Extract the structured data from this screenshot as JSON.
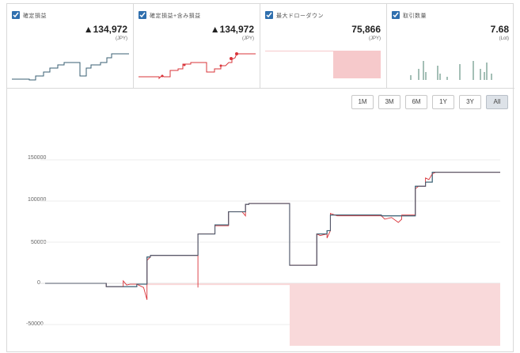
{
  "cards": [
    {
      "label": "確定損益",
      "value": "▲134,972",
      "unit": "(JPY)",
      "color": "#3a5f73"
    },
    {
      "label": "確定損益+含み損益",
      "value": "▲134,972",
      "unit": "(JPY)",
      "color": "#d9343a"
    },
    {
      "label": "最大ドローダウン",
      "value": "75,866",
      "unit": "(JPY)",
      "color": "#f6c9cb"
    },
    {
      "label": "取引数量",
      "value": "7.68",
      "unit": "(Lot)",
      "color": "#4a7f6c"
    }
  ],
  "range_buttons": [
    "1M",
    "3M",
    "6M",
    "1Y",
    "3Y",
    "All"
  ],
  "active_range": "All",
  "chart_data": {
    "type": "line",
    "y_ticks": [
      "150000",
      "100000",
      "50000",
      "0",
      "-50000"
    ],
    "ylim": [
      -75866,
      150000
    ],
    "grid": true,
    "series": [
      {
        "color": "#3a5f73",
        "points": [
          [
            0,
            0
          ],
          [
            0.18,
            0
          ],
          [
            0.18,
            -4000
          ],
          [
            0.27,
            -4000
          ],
          [
            0.27,
            -1000
          ],
          [
            0.3,
            -1000
          ],
          [
            0.3,
            32000
          ],
          [
            0.31,
            32000
          ],
          [
            0.31,
            34000
          ],
          [
            0.45,
            34000
          ],
          [
            0.45,
            60000
          ],
          [
            0.5,
            60000
          ],
          [
            0.5,
            71000
          ],
          [
            0.54,
            71000
          ],
          [
            0.54,
            87000
          ],
          [
            0.59,
            87000
          ],
          [
            0.59,
            96000
          ],
          [
            0.6,
            96000
          ],
          [
            0.6,
            97000
          ],
          [
            0.72,
            97000
          ],
          [
            0.72,
            22000
          ],
          [
            0.8,
            22000
          ],
          [
            0.8,
            60000
          ],
          [
            0.83,
            60000
          ],
          [
            0.83,
            64000
          ],
          [
            0.84,
            64000
          ],
          [
            0.84,
            83000
          ],
          [
            0.99,
            83000
          ],
          [
            0.99,
            82000
          ],
          [
            1.09,
            82000
          ],
          [
            1.09,
            118000
          ],
          [
            1.12,
            118000
          ],
          [
            1.12,
            123000
          ],
          [
            1.14,
            123000
          ],
          [
            1.14,
            134972
          ],
          [
            1.34,
            134972
          ]
        ]
      },
      {
        "color": "#d9343a",
        "points": [
          [
            0,
            0
          ],
          [
            0.18,
            0
          ],
          [
            0.18,
            -4000
          ],
          [
            0.23,
            -4000
          ],
          [
            0.23,
            3000
          ],
          [
            0.24,
            -2000
          ],
          [
            0.25,
            -1000
          ],
          [
            0.27,
            -1000
          ],
          [
            0.29,
            -5000
          ],
          [
            0.3,
            -20000
          ],
          [
            0.3,
            28000
          ],
          [
            0.31,
            32000
          ],
          [
            0.31,
            34000
          ],
          [
            0.45,
            34000
          ],
          [
            0.45,
            -5000
          ],
          [
            0.45,
            60000
          ],
          [
            0.5,
            60000
          ],
          [
            0.5,
            70000
          ],
          [
            0.54,
            70000
          ],
          [
            0.54,
            87000
          ],
          [
            0.58,
            87000
          ],
          [
            0.59,
            82000
          ],
          [
            0.59,
            96000
          ],
          [
            0.6,
            96000
          ],
          [
            0.6,
            97000
          ],
          [
            0.72,
            97000
          ],
          [
            0.72,
            22000
          ],
          [
            0.8,
            22000
          ],
          [
            0.8,
            60000
          ],
          [
            0.81,
            58000
          ],
          [
            0.83,
            60000
          ],
          [
            0.83,
            55000
          ],
          [
            0.84,
            64000
          ],
          [
            0.84,
            85000
          ],
          [
            0.86,
            82000
          ],
          [
            0.99,
            82000
          ],
          [
            1.0,
            78000
          ],
          [
            1.02,
            80000
          ],
          [
            1.04,
            74000
          ],
          [
            1.05,
            78000
          ],
          [
            1.05,
            83000
          ],
          [
            1.09,
            83000
          ],
          [
            1.09,
            115000
          ],
          [
            1.1,
            118000
          ],
          [
            1.12,
            118000
          ],
          [
            1.12,
            128000
          ],
          [
            1.13,
            126000
          ],
          [
            1.14,
            133000
          ],
          [
            1.15,
            134972
          ],
          [
            1.34,
            134972
          ]
        ]
      }
    ],
    "drawdown": [
      [
        0,
        0
      ],
      [
        0.3,
        0
      ],
      [
        0.3,
        -2000
      ],
      [
        0.72,
        -2000
      ],
      [
        0.72,
        -75866
      ],
      [
        1.34,
        -75866
      ]
    ]
  }
}
